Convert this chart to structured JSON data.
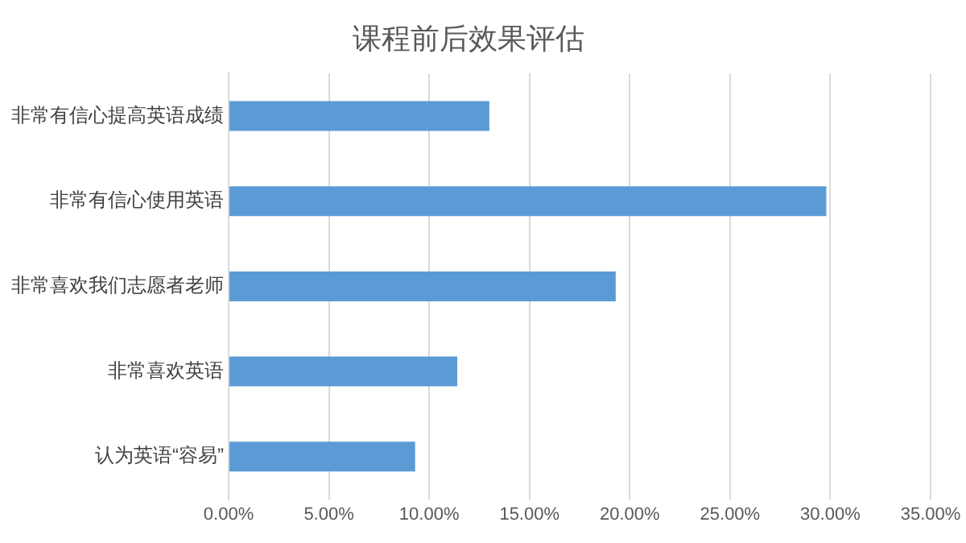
{
  "chart_data": {
    "type": "bar",
    "orientation": "horizontal",
    "title": "课程前后效果评估",
    "categories": [
      "非常有信心提高英语成绩",
      "非常有信心使用英语",
      "非常喜欢我们志愿者老师",
      "非常喜欢英语",
      "认为英语“容易”"
    ],
    "values": [
      13.0,
      29.8,
      19.3,
      11.4,
      9.3
    ],
    "color": "#5b9bd5",
    "xlim": [
      0,
      35
    ],
    "xticks": [
      {
        "value": 0,
        "label": "0.00%"
      },
      {
        "value": 5,
        "label": "5.00%"
      },
      {
        "value": 10,
        "label": "10.00%"
      },
      {
        "value": 15,
        "label": "15.00%"
      },
      {
        "value": 20,
        "label": "20.00%"
      },
      {
        "value": 25,
        "label": "25.00%"
      },
      {
        "value": 30,
        "label": "30.00%"
      },
      {
        "value": 35,
        "label": "35.00%"
      }
    ],
    "grid": "x",
    "legend": false
  }
}
